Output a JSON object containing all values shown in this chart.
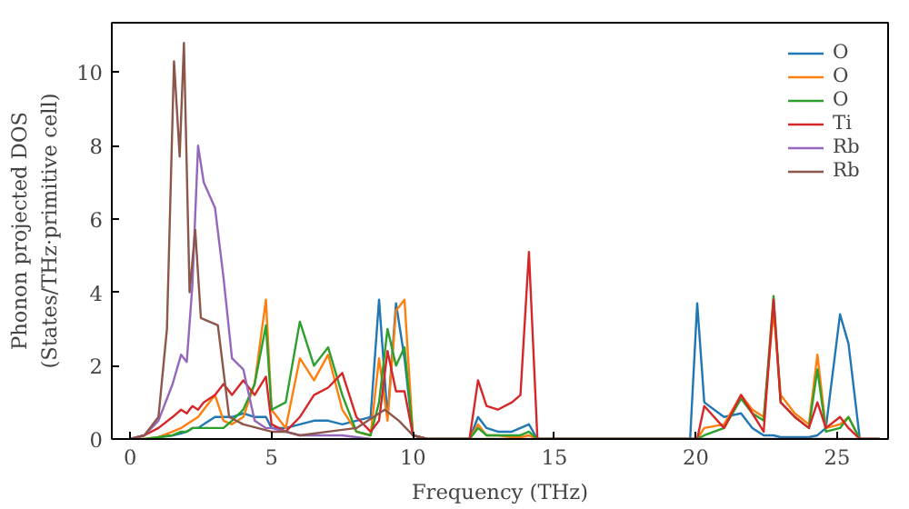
{
  "chart_data": {
    "type": "line",
    "xlabel": "Frequency (THz)",
    "ylabel": "Phonon projected DOS\n(States/THz·primitive cell)",
    "x": [
      0,
      0.5,
      1,
      1.5,
      1.8,
      2,
      2.2,
      2.4,
      2.6,
      3,
      3.3,
      3.6,
      4,
      4.4,
      4.8,
      5,
      5.5,
      6,
      6.5,
      7,
      7.5,
      8,
      8.5,
      8.8,
      9.1,
      9.4,
      9.7,
      10,
      10.5,
      12,
      12.3,
      12.6,
      13,
      13.5,
      13.8,
      14.1,
      14.4,
      19.8,
      20.05,
      20.3,
      21,
      21.6,
      22,
      22.4,
      22.75,
      23,
      23.5,
      24,
      24.3,
      24.6,
      25.1,
      25.4,
      25.8,
      26.5
    ],
    "series": [
      {
        "name": "O",
        "color": "#1f77b4",
        "x": [
          1,
          1.5,
          1.8,
          2,
          2.2,
          2.4,
          2.6,
          3,
          3.3,
          3.6,
          4,
          4.4,
          4.8,
          5,
          5.5,
          6,
          6.5,
          7,
          7.5,
          8,
          8.5,
          8.8,
          9.1,
          9.4,
          9.7,
          10,
          10.5,
          12,
          12.3,
          12.6,
          13,
          13.5,
          13.8,
          14.1,
          14.4,
          19.8,
          20.05,
          20.3,
          21,
          21.6,
          22,
          22.4,
          22.75,
          23,
          23.5,
          24,
          24.3,
          24.6,
          25.1,
          25.4,
          25.8,
          26.5
        ],
        "values": [
          0.05,
          0.1,
          0.15,
          0.2,
          0.3,
          0.3,
          0.4,
          0.6,
          0.6,
          0.6,
          0.7,
          0.6,
          0.6,
          0.3,
          0.3,
          0.4,
          0.5,
          0.5,
          0.4,
          0.5,
          0.6,
          3.8,
          0.6,
          3.7,
          2.2,
          0.1,
          0,
          0,
          0.6,
          0.3,
          0.2,
          0.2,
          0.3,
          0.4,
          0,
          0,
          3.7,
          1.0,
          0.6,
          0.7,
          0.3,
          0.1,
          0.1,
          0.05,
          0.05,
          0.05,
          0.1,
          0.3,
          3.4,
          2.6,
          0,
          0
        ]
      },
      {
        "name": "O",
        "color": "#ff7f0e",
        "values": [
          0,
          0,
          0.05,
          0.2,
          0.3,
          0.4,
          0.5,
          0.6,
          0.8,
          1.2,
          0.5,
          0.4,
          0.6,
          1.5,
          3.8,
          0.8,
          0.3,
          2.2,
          1.6,
          2.3,
          0.8,
          0.2,
          0.1,
          2.2,
          0.5,
          3.5,
          3.8,
          0.1,
          0,
          0,
          0.4,
          0.1,
          0.1,
          0.05,
          0.05,
          0.1,
          0,
          0,
          0,
          0.3,
          0.4,
          1.2,
          0.8,
          0.6,
          3.5,
          1.2,
          0.7,
          0.4,
          2.3,
          0.3,
          0.4,
          0.6,
          0,
          0
        ]
      },
      {
        "name": "O",
        "color": "#2ca02c",
        "values": [
          0,
          0,
          0.05,
          0.1,
          0.2,
          0.2,
          0.3,
          0.3,
          0.3,
          0.3,
          0.3,
          0.5,
          0.8,
          1.5,
          3.1,
          0.8,
          1.0,
          3.2,
          2.0,
          2.5,
          1.2,
          0.2,
          0.1,
          1.0,
          3.0,
          2.0,
          2.5,
          0.1,
          0,
          0,
          0.3,
          0.1,
          0.1,
          0.1,
          0.1,
          0.2,
          0,
          0,
          0,
          0.1,
          0.3,
          1.1,
          0.7,
          0.5,
          3.9,
          1.0,
          0.6,
          0.3,
          1.9,
          0.2,
          0.3,
          0.6,
          0,
          0
        ]
      },
      {
        "name": "Ti",
        "color": "#d62728",
        "values": [
          0,
          0.1,
          0.3,
          0.6,
          0.8,
          0.7,
          0.9,
          0.8,
          1.0,
          1.2,
          1.5,
          1.2,
          1.6,
          1.2,
          1.7,
          0.4,
          0.2,
          0.6,
          1.2,
          1.4,
          1.8,
          0.6,
          0.2,
          0.5,
          2.4,
          1.3,
          1.3,
          0.1,
          0,
          0,
          1.6,
          0.9,
          0.8,
          1.0,
          1.2,
          5.1,
          0,
          0,
          0,
          0.9,
          0.3,
          1.2,
          0.7,
          0.2,
          3.8,
          1.0,
          0.6,
          0.3,
          1.0,
          0.3,
          0.6,
          0.3,
          0,
          0
        ]
      },
      {
        "name": "Rb",
        "color": "#9467bd",
        "x": [
          0,
          0.5,
          1,
          1.5,
          1.8,
          2,
          2.2,
          2.4,
          2.6,
          3,
          3.3,
          3.6,
          4,
          4.4,
          4.8,
          5,
          5.5,
          6,
          6.5,
          7,
          7.5,
          8,
          8.5
        ],
        "values": [
          0,
          0.1,
          0.5,
          1.5,
          2.3,
          2.1,
          4.2,
          8.0,
          7.0,
          6.3,
          4.4,
          2.2,
          1.9,
          0.5,
          0.3,
          0.3,
          0.2,
          0.1,
          0.1,
          0.1,
          0.1,
          0.05,
          0
        ]
      },
      {
        "name": "Rb",
        "color": "#8c564b",
        "x": [
          0,
          0.5,
          1,
          1.3,
          1.55,
          1.75,
          1.9,
          2.1,
          2.3,
          2.5,
          2.8,
          3.1,
          3.5,
          4,
          4.5,
          5,
          5.5,
          6,
          7,
          8,
          9,
          9.5,
          10,
          10.5,
          26.5
        ],
        "values": [
          0,
          0.1,
          0.6,
          3.0,
          10.3,
          7.7,
          10.8,
          4.0,
          5.7,
          3.3,
          3.2,
          3.1,
          0.6,
          0.4,
          0.3,
          0.2,
          0.2,
          0.1,
          0.2,
          0.3,
          0.8,
          0.5,
          0.1,
          0,
          0
        ]
      }
    ],
    "xlim": [
      -0.65,
      26.8
    ],
    "ylim": [
      0,
      11.35
    ],
    "xticks": [
      0,
      5,
      10,
      15,
      20,
      25
    ],
    "yticks": [
      0,
      2,
      4,
      6,
      8,
      10
    ],
    "legend": "top right",
    "grid": false
  }
}
